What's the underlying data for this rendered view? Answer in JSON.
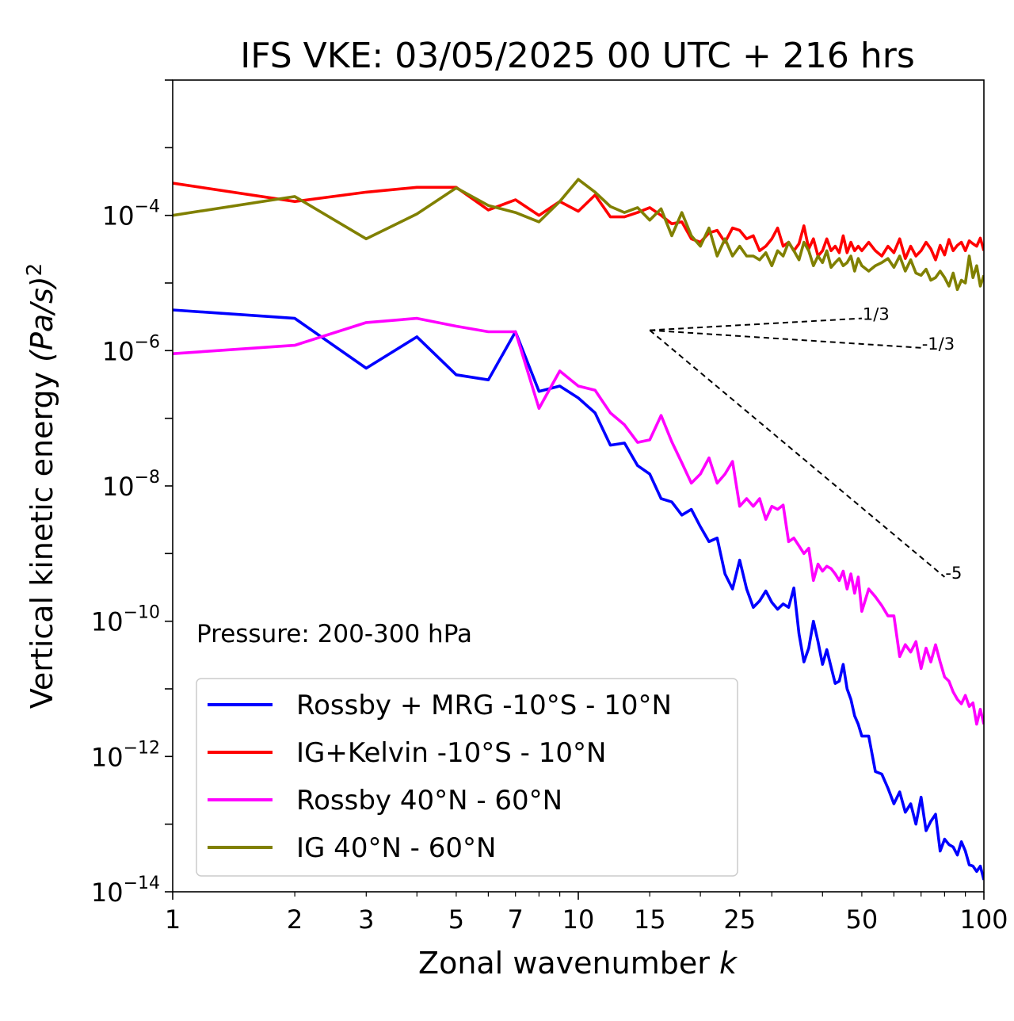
{
  "chart_data": {
    "type": "line",
    "title": "IFS VKE: 03/05/2025 00 UTC + 216 hrs",
    "xlabel": "Zonal wavenumber",
    "xlabel_var": "k",
    "ylabel_main": "Vertical kinetic energy ",
    "ylabel_unit": "(Pa/s)",
    "ylabel_power": "2",
    "xscale": "log",
    "yscale": "log",
    "xlim": [
      1,
      100
    ],
    "ylim": [
      1e-14,
      0.01
    ],
    "grid": false,
    "legend_position": "lower-left",
    "annotation": "Pressure: 200-300 hPa",
    "x_ticks": [
      1,
      2,
      3,
      5,
      7,
      10,
      15,
      25,
      50,
      100
    ],
    "x_tick_labels": [
      "1",
      "2",
      "3",
      "5",
      "7",
      "10",
      "15",
      "25",
      "50",
      "100"
    ],
    "y_ticks": [
      {
        "value": 1e-14,
        "base": "10",
        "exp": "−14"
      },
      {
        "value": 1e-12,
        "base": "10",
        "exp": "−12"
      },
      {
        "value": 1e-10,
        "base": "10",
        "exp": "−10"
      },
      {
        "value": 1e-08,
        "base": "10",
        "exp": "−8"
      },
      {
        "value": 1e-06,
        "base": "10",
        "exp": "−6"
      },
      {
        "value": 0.0001,
        "base": "10",
        "exp": "−4"
      }
    ],
    "reference_lines": [
      {
        "label": "1/3",
        "x": [
          15,
          50
        ],
        "y": [
          2e-06,
          3e-06
        ]
      },
      {
        "label": "-1/3",
        "x": [
          15,
          70
        ],
        "y": [
          2e-06,
          1.1e-06
        ]
      },
      {
        "label": "-5",
        "x": [
          15,
          80
        ],
        "y": [
          2e-06,
          4.5e-10
        ]
      }
    ],
    "series": [
      {
        "name": "Rossby + MRG -10°S - 10°N",
        "color": "#0000ff",
        "x": [
          1,
          2,
          3,
          4,
          5,
          6,
          7,
          8,
          9,
          10,
          11,
          12,
          13,
          14,
          15,
          16,
          17,
          18,
          19,
          20,
          21,
          22,
          23,
          24,
          25,
          26,
          27,
          28,
          29,
          30,
          31,
          32,
          33,
          34,
          35,
          36,
          37,
          38,
          39,
          40,
          41,
          42,
          43,
          44,
          45,
          46,
          47,
          48,
          49,
          50,
          52,
          54,
          56,
          58,
          60,
          62,
          64,
          66,
          68,
          70,
          72,
          74,
          76,
          78,
          80,
          82,
          84,
          86,
          88,
          90,
          92,
          94,
          96,
          98,
          100
        ],
        "values": [
          4e-06,
          3e-06,
          5.5e-07,
          1.6e-06,
          4.4e-07,
          3.7e-07,
          1.9e-06,
          2.5e-07,
          3e-07,
          2e-07,
          1.2e-07,
          4e-08,
          4.3e-08,
          2e-08,
          1.5e-08,
          6.5e-09,
          5.8e-09,
          3.7e-09,
          4.5e-09,
          2.5e-09,
          1.5e-09,
          1.7e-09,
          5e-10,
          3e-10,
          8e-10,
          3e-10,
          1.6e-10,
          2e-10,
          2.8e-10,
          1.9e-10,
          1.5e-10,
          1.8e-10,
          1.6e-10,
          3.1e-10,
          6.5e-11,
          2.5e-11,
          4e-11,
          1e-10,
          5e-11,
          2.3e-11,
          3.8e-11,
          2.1e-11,
          1.2e-11,
          1.3e-11,
          2.3e-11,
          1e-11,
          7e-12,
          4e-12,
          3e-12,
          2e-12,
          2e-12,
          6e-13,
          5.5e-13,
          3.4e-13,
          2e-13,
          3e-13,
          1.5e-13,
          2e-13,
          1e-13,
          2.5e-13,
          8e-14,
          1.1e-13,
          1.4e-13,
          4e-14,
          6e-14,
          5e-14,
          4.6e-14,
          3.5e-14,
          5.5e-14,
          4e-14,
          2.5e-14,
          2.4e-14,
          2e-14,
          2.4e-14,
          1.5e-14
        ]
      },
      {
        "name": "IG+Kelvin -10°S - 10°N",
        "color": "#ff0000",
        "x": [
          1,
          2,
          3,
          4,
          5,
          6,
          7,
          8,
          9,
          10,
          11,
          12,
          13,
          14,
          15,
          16,
          17,
          18,
          19,
          20,
          21,
          22,
          23,
          24,
          25,
          26,
          27,
          28,
          29,
          30,
          31,
          32,
          33,
          34,
          35,
          36,
          37,
          38,
          39,
          40,
          41,
          42,
          43,
          44,
          45,
          46,
          47,
          48,
          49,
          50,
          52,
          54,
          56,
          58,
          60,
          62,
          64,
          66,
          68,
          70,
          72,
          74,
          76,
          78,
          80,
          82,
          84,
          86,
          88,
          90,
          92,
          94,
          96,
          98,
          100
        ],
        "values": [
          0.0003,
          0.00016,
          0.00022,
          0.00026,
          0.00026,
          0.00012,
          0.00017,
          0.0001,
          0.00016,
          0.000115,
          0.0002,
          9.5e-05,
          9.5e-05,
          0.00011,
          0.00013,
          0.0001,
          7.5e-05,
          8e-05,
          4.5e-05,
          4e-05,
          5.5e-05,
          6e-05,
          4e-05,
          6.5e-05,
          6e-05,
          4.5e-05,
          5e-05,
          3e-05,
          3.5e-05,
          4.5e-05,
          6.5e-05,
          3.5e-05,
          4e-05,
          3e-05,
          3.8e-05,
          7e-05,
          3.2e-05,
          4.5e-05,
          2.5e-05,
          3e-05,
          4.5e-05,
          3e-05,
          3.5e-05,
          2.8e-05,
          5e-05,
          2.8e-05,
          4e-05,
          3e-05,
          3.5e-05,
          3e-05,
          4e-05,
          3e-05,
          2.5e-05,
          3.5e-05,
          2.8e-05,
          4.5e-05,
          2.3e-05,
          3.5e-05,
          2.5e-05,
          3e-05,
          4e-05,
          3.2e-05,
          2.2e-05,
          3.6e-05,
          2.6e-05,
          4.4e-05,
          3e-05,
          3.6e-05,
          4e-05,
          3e-05,
          4.2e-05,
          3.8e-05,
          3.5e-05,
          4.6e-05,
          3e-05
        ]
      },
      {
        "name": "Rossby 40°N - 60°N",
        "color": "#ff00ff",
        "x": [
          1,
          2,
          3,
          4,
          5,
          6,
          7,
          8,
          9,
          10,
          11,
          12,
          13,
          14,
          15,
          16,
          17,
          18,
          19,
          20,
          21,
          22,
          23,
          24,
          25,
          26,
          27,
          28,
          29,
          30,
          31,
          32,
          33,
          34,
          35,
          36,
          37,
          38,
          39,
          40,
          41,
          42,
          43,
          44,
          45,
          46,
          47,
          48,
          49,
          50,
          52,
          54,
          56,
          58,
          60,
          62,
          64,
          66,
          68,
          70,
          72,
          74,
          76,
          78,
          80,
          82,
          84,
          86,
          88,
          90,
          92,
          94,
          96,
          98,
          100
        ],
        "values": [
          9e-07,
          1.2e-06,
          2.6e-06,
          3e-06,
          2.3e-06,
          1.9e-06,
          1.9e-06,
          1.4e-07,
          5e-07,
          3e-07,
          2.6e-07,
          1.2e-07,
          8e-08,
          4.4e-08,
          4.8e-08,
          1.1e-07,
          4.5e-08,
          2.2e-08,
          1.1e-08,
          1.5e-08,
          2.6e-08,
          1.1e-08,
          1.5e-08,
          2.3e-08,
          5e-09,
          6.5e-09,
          5e-09,
          6.5e-09,
          3.2e-09,
          5e-09,
          4.5e-09,
          5.2e-09,
          1.5e-09,
          1.7e-09,
          1.3e-09,
          1e-09,
          1.2e-09,
          4e-10,
          7e-10,
          5.5e-10,
          6.5e-10,
          6e-10,
          5e-10,
          4e-10,
          5.5e-10,
          3e-10,
          5e-10,
          2.6e-10,
          4.5e-10,
          1.4e-10,
          3e-10,
          2.3e-10,
          1.7e-10,
          1.2e-10,
          1.2e-10,
          3e-11,
          4.5e-11,
          3.5e-11,
          5e-11,
          2e-11,
          4e-11,
          2.5e-11,
          4.5e-11,
          2.5e-11,
          1.5e-11,
          1.3e-11,
          9e-12,
          7e-12,
          6e-12,
          8e-12,
          5.5e-12,
          6.2e-12,
          3e-12,
          5e-12,
          3e-12
        ]
      },
      {
        "name": "IG 40°N - 60°N",
        "color": "#808000",
        "x": [
          1,
          2,
          3,
          4,
          5,
          6,
          7,
          8,
          9,
          10,
          11,
          12,
          13,
          14,
          15,
          16,
          17,
          18,
          19,
          20,
          21,
          22,
          23,
          24,
          25,
          26,
          27,
          28,
          29,
          30,
          31,
          32,
          33,
          34,
          35,
          36,
          37,
          38,
          39,
          40,
          41,
          42,
          43,
          44,
          45,
          46,
          47,
          48,
          49,
          50,
          52,
          54,
          56,
          58,
          60,
          62,
          64,
          66,
          68,
          70,
          72,
          74,
          76,
          78,
          80,
          82,
          84,
          86,
          88,
          90,
          92,
          94,
          96,
          98,
          100
        ],
        "values": [
          0.0001,
          0.00019,
          4.5e-05,
          0.000105,
          0.000255,
          0.00014,
          0.00011,
          8e-05,
          0.00016,
          0.00034,
          0.00022,
          0.000135,
          0.00011,
          0.00013,
          8.5e-05,
          0.000125,
          5e-05,
          0.00011,
          5e-05,
          3.5e-05,
          6.5e-05,
          2.5e-05,
          4.5e-05,
          2.5e-05,
          3.5e-05,
          2.5e-05,
          2.5e-05,
          2.2e-05,
          2.8e-05,
          1.8e-05,
          3e-05,
          2.5e-05,
          4e-05,
          3e-05,
          2.2e-05,
          4e-05,
          3e-05,
          1.8e-05,
          2.5e-05,
          2e-05,
          3e-05,
          1.7e-05,
          2e-05,
          2.3e-05,
          1.8e-05,
          2e-05,
          2.5e-05,
          1.5e-05,
          2.3e-05,
          1.8e-05,
          1.5e-05,
          1.8e-05,
          2e-05,
          2.3e-05,
          1.7e-05,
          2.5e-05,
          1.5e-05,
          2.2e-05,
          1.4e-05,
          1.3e-05,
          1.6e-05,
          1.1e-05,
          1.2e-05,
          1.5e-05,
          1.2e-05,
          9e-06,
          1.4e-05,
          8e-06,
          1.1e-05,
          1e-05,
          2.5e-05,
          1.2e-05,
          1.8e-05,
          9e-06,
          1.3e-05
        ]
      }
    ]
  }
}
